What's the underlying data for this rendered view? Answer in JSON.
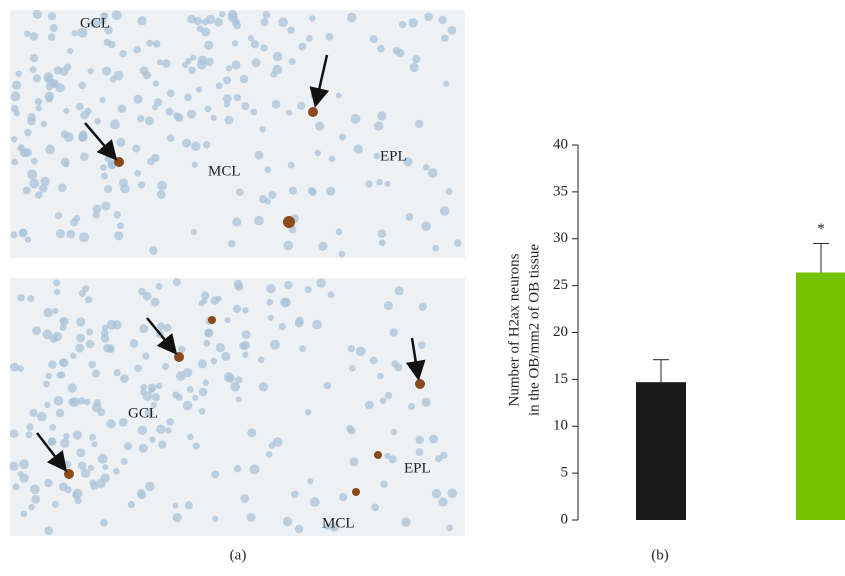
{
  "panels": {
    "a": {
      "label": "(a)",
      "images": [
        {
          "labels": [
            "GCL",
            "MCL",
            "EPL"
          ]
        },
        {
          "labels": [
            "GCL",
            "MCL",
            "EPL"
          ]
        }
      ]
    },
    "b": {
      "label": "(b)"
    }
  },
  "chart_data": {
    "type": "bar",
    "ylabel": [
      "Number of H2ax neurons",
      "in the OB/mm2 of OB tissue"
    ],
    "categories": [
      null,
      null
    ],
    "values": [
      14.7,
      26.4
    ],
    "errors": [
      2.4,
      3.1
    ],
    "significance": [
      null,
      "*"
    ],
    "colors": [
      "#1a1a1a",
      "#77c200"
    ],
    "ylim": [
      0,
      40
    ],
    "yticks": [
      0,
      5,
      10,
      15,
      20,
      25,
      30,
      35,
      40
    ]
  }
}
